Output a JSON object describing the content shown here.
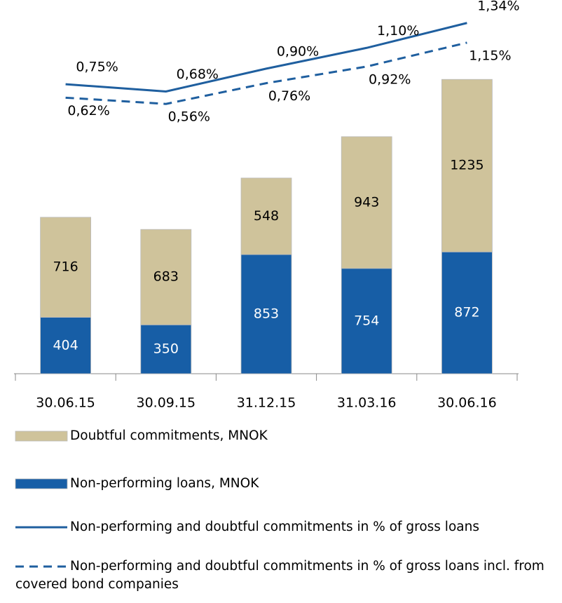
{
  "chart_data": {
    "type": "bar",
    "categories": [
      "30.06.15",
      "30.09.15",
      "31.12.15",
      "31.03.16",
      "30.06.16"
    ],
    "stacked": true,
    "ylim": [
      0,
      2600
    ],
    "y2lim": [
      -2.04,
      1.46
    ],
    "series": [
      {
        "name": "Non-performing loans, MNOK",
        "type": "bar",
        "color": "#175ea6",
        "label_color": "#ffffff",
        "values": [
          404,
          350,
          853,
          754,
          872
        ]
      },
      {
        "name": "Doubtful commitments, MNOK",
        "type": "bar",
        "color": "#cfc39b",
        "label_color": "#000000",
        "values": [
          716,
          683,
          548,
          943,
          1235
        ]
      },
      {
        "name": "Non-performing and doubtful commitments in % of gross loans",
        "type": "line",
        "axis": "y2",
        "color": "#1f5f9f",
        "dash": false,
        "values": [
          0.75,
          0.68,
          0.9,
          1.1,
          1.34
        ],
        "value_labels": [
          "0,75%",
          "0,68%",
          "0,90%",
          "1,10%",
          "1,34%"
        ]
      },
      {
        "name": "Non-performing and doubtful commitments in % of gross loans incl. from covered bond companies",
        "type": "line",
        "axis": "y2",
        "color": "#1f5f9f",
        "dash": true,
        "values": [
          0.62,
          0.56,
          0.76,
          0.92,
          1.15
        ],
        "value_labels": [
          "0,62%",
          "0,56%",
          "0,76%",
          "0,92%",
          "1,15%"
        ]
      }
    ],
    "legend_order": [
      1,
      0,
      2,
      3
    ]
  }
}
